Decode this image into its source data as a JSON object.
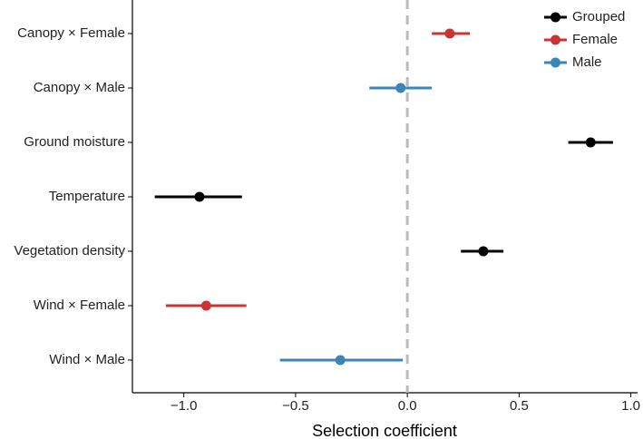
{
  "chart_data": {
    "type": "dot-errorbar",
    "x_label": "Selection coefficient",
    "categories": [
      "Canopy × Female",
      "Canopy × Male",
      "Ground moisture",
      "Temperature",
      "Vegetation density",
      "Wind × Female",
      "Wind × Male"
    ],
    "series": [
      {
        "name": "Grouped",
        "color": "#000000",
        "values": [
          null,
          null,
          0.82,
          -0.93,
          0.34,
          null,
          null
        ],
        "lower": [
          null,
          null,
          0.72,
          -1.13,
          0.24,
          null,
          null
        ],
        "upper": [
          null,
          null,
          0.92,
          -0.74,
          0.43,
          null,
          null
        ]
      },
      {
        "name": "Female",
        "color": "#cc3333",
        "values": [
          0.19,
          null,
          null,
          null,
          null,
          -0.9,
          null
        ],
        "lower": [
          0.11,
          null,
          null,
          null,
          null,
          -1.08,
          null
        ],
        "upper": [
          0.28,
          null,
          null,
          null,
          null,
          -0.72,
          null
        ]
      },
      {
        "name": "Male",
        "color": "#3a86b8",
        "values": [
          null,
          -0.03,
          null,
          null,
          null,
          null,
          -0.3
        ],
        "lower": [
          null,
          -0.17,
          null,
          null,
          null,
          null,
          -0.57
        ],
        "upper": [
          null,
          0.11,
          null,
          null,
          null,
          null,
          -0.02
        ]
      }
    ],
    "xlim": [
      -1.23,
      1.03
    ],
    "xticks": [
      {
        "value": -1,
        "label": "−1.0"
      },
      {
        "value": -0.5,
        "label": "−0.5"
      },
      {
        "value": 0,
        "label": "0.0"
      },
      {
        "value": 0.5,
        "label": "0.5"
      },
      {
        "value": 1,
        "label": "1.0"
      }
    ],
    "reference_line": 0,
    "legend": "top-right"
  }
}
